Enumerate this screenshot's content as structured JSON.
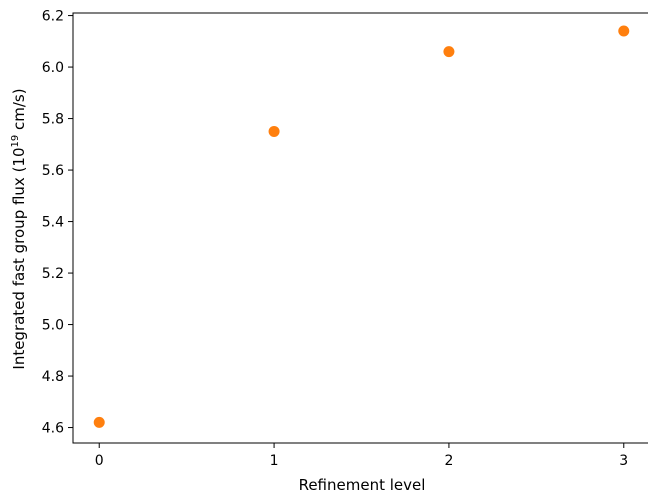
{
  "chart_data": {
    "type": "scatter",
    "x": [
      0,
      1,
      2,
      3
    ],
    "y": [
      4.62,
      5.75,
      6.06,
      6.14
    ],
    "xlabel": "Refinement level",
    "ylabel_prefix": "Integrated fast group flux (10",
    "ylabel_superscript": "19",
    "ylabel_suffix": " cm/s)",
    "xlim": [
      -0.15,
      3.15
    ],
    "ylim": [
      4.54,
      6.21
    ],
    "xticks": [
      0,
      1,
      2,
      3
    ],
    "xtick_labels": [
      "0",
      "1",
      "2",
      "3"
    ],
    "yticks": [
      4.6,
      4.8,
      5.0,
      5.2,
      5.4,
      5.6,
      5.8,
      6.0,
      6.2
    ],
    "ytick_labels": [
      "4.6",
      "4.8",
      "5.0",
      "5.2",
      "5.4",
      "5.6",
      "5.8",
      "6.0",
      "6.2"
    ],
    "marker_color": "#ff7f0e",
    "grid": false,
    "legend": "none"
  }
}
